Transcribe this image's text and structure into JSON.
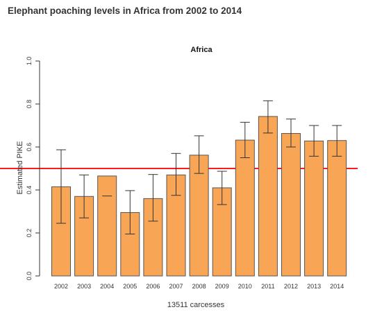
{
  "page": {
    "title": "Elephant poaching levels in Africa from 2002 to 2014"
  },
  "chart_data": {
    "type": "bar",
    "title": "Africa",
    "xlabel": "13511 carcesses",
    "ylabel": "Estimated PIKE",
    "ylim": [
      0,
      1.0
    ],
    "yticks": [
      "0.0",
      "0.2",
      "0.4",
      "0.6",
      "0.8",
      "1.0"
    ],
    "categories": [
      "2002",
      "2003",
      "2004",
      "2005",
      "2006",
      "2007",
      "2008",
      "2009",
      "2010",
      "2011",
      "2012",
      "2013",
      "2014"
    ],
    "values": [
      0.415,
      0.37,
      0.465,
      0.295,
      0.36,
      0.47,
      0.562,
      0.41,
      0.632,
      0.742,
      0.663,
      0.628,
      0.63
    ],
    "error_low": [
      0.245,
      0.27,
      0.372,
      0.195,
      0.255,
      0.375,
      0.477,
      0.332,
      0.55,
      0.665,
      0.6,
      0.557,
      0.557
    ],
    "error_high": [
      0.587,
      0.47,
      null,
      0.397,
      0.472,
      0.57,
      0.652,
      0.487,
      0.715,
      0.815,
      0.73,
      0.7,
      0.7
    ],
    "reference_line": 0.5,
    "grid": false,
    "colors": {
      "bar_fill": "#f8a555",
      "bar_stroke": "#555555",
      "reference_line": "#ff1a1a",
      "text": "#333333"
    }
  }
}
